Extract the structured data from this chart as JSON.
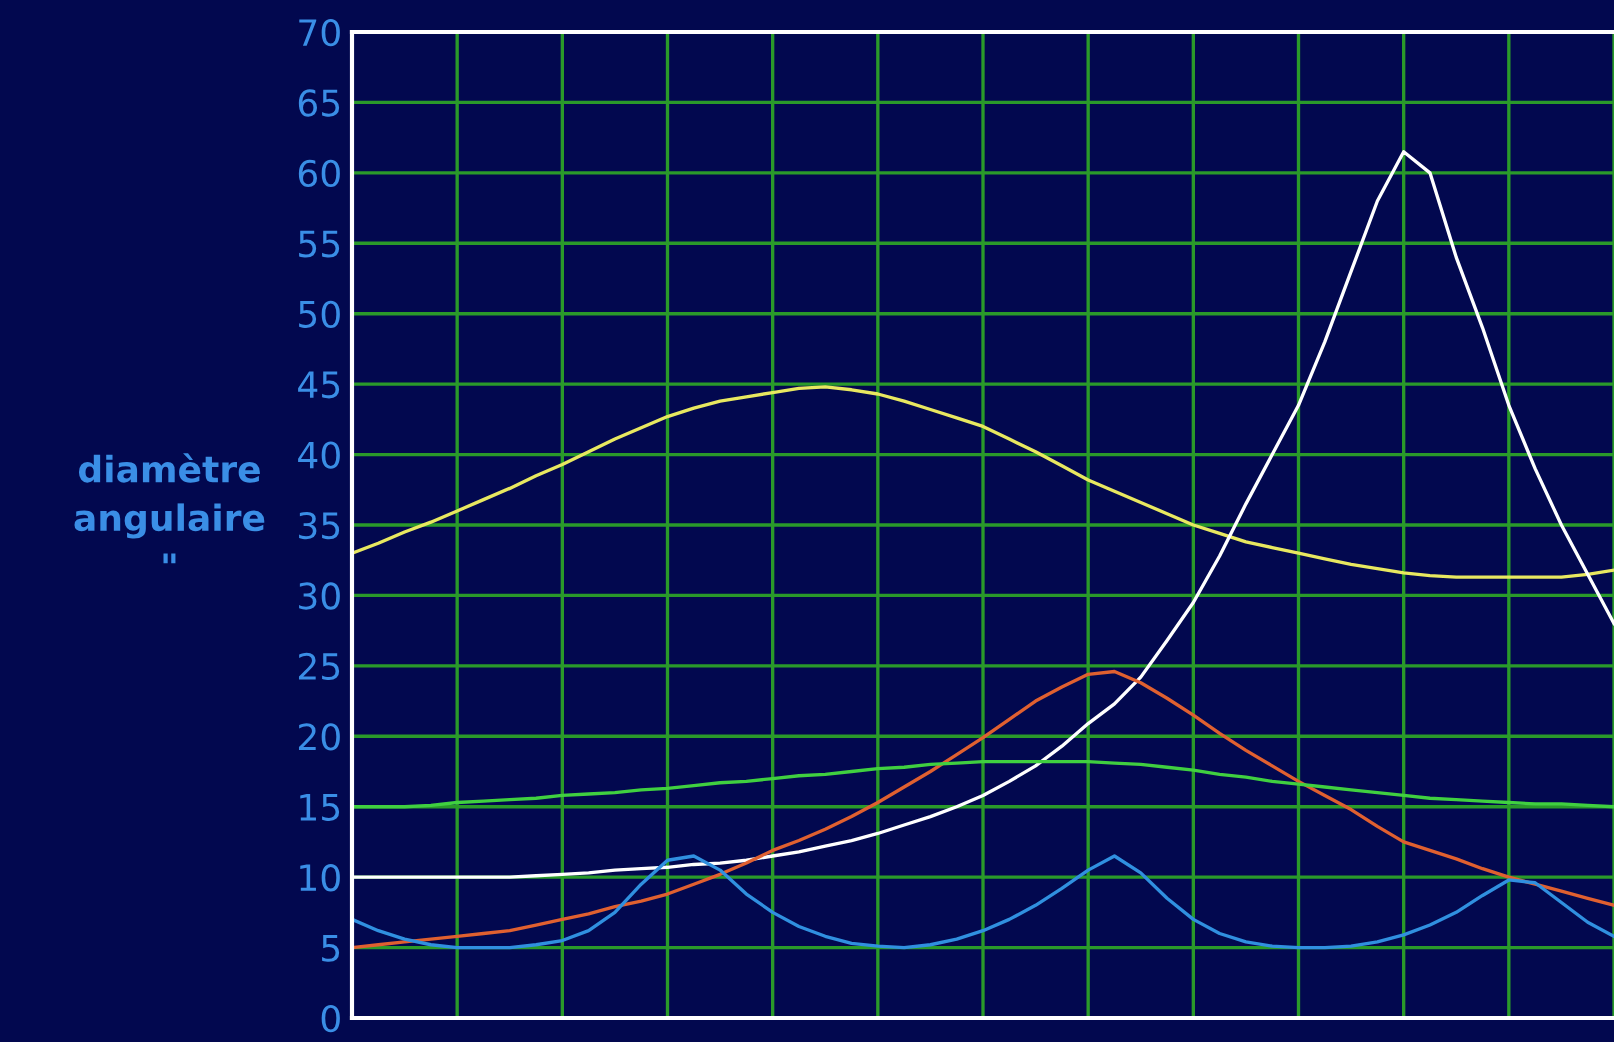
{
  "chart_data": {
    "type": "line",
    "ylabel": "diamètre\nangulaire\n\"",
    "categories": [
      null,
      null,
      null,
      null,
      null,
      null,
      null,
      null,
      null,
      null,
      null,
      null,
      null,
      null,
      null,
      null,
      null,
      null,
      null,
      null,
      null,
      null,
      null,
      null,
      null,
      null,
      null,
      null,
      null,
      null,
      null,
      null,
      null,
      null,
      null,
      null,
      null,
      null,
      null,
      null,
      null,
      null,
      null,
      null,
      null,
      null,
      null,
      null,
      null
    ],
    "series": [
      {
        "color": "#e8e860",
        "values": [
          33,
          33.7,
          34.5,
          35.2,
          36,
          36.8,
          37.6,
          38.5,
          39.3,
          40.2,
          41.1,
          41.9,
          42.7,
          43.3,
          43.8,
          44.1,
          44.4,
          44.7,
          44.8,
          44.6,
          44.3,
          43.8,
          43.2,
          42.6,
          42,
          41.1,
          40.2,
          39.2,
          38.2,
          37.4,
          36.6,
          35.8,
          35,
          34.4,
          33.8,
          33.4,
          33,
          32.6,
          32.2,
          31.9,
          31.6,
          31.4,
          31.3,
          31.3,
          31.3,
          31.3,
          31.3,
          31.5,
          31.8
        ]
      },
      {
        "color": "#ffffff",
        "values": [
          10,
          10,
          10,
          10,
          10,
          10,
          10,
          10.1,
          10.2,
          10.3,
          10.5,
          10.6,
          10.7,
          10.9,
          11,
          11.2,
          11.5,
          11.8,
          12.2,
          12.6,
          13.1,
          13.7,
          14.3,
          15,
          15.8,
          16.8,
          17.9,
          19.3,
          20.9,
          22.3,
          24.2,
          26.8,
          29.5,
          32.8,
          36.5,
          40,
          43.5,
          48,
          53,
          58,
          61.5,
          60,
          54,
          49,
          43.5,
          39,
          35,
          31.5,
          28
        ]
      },
      {
        "color": "#e06030",
        "values": [
          5,
          5.2,
          5.4,
          5.6,
          5.8,
          6,
          6.2,
          6.6,
          7,
          7.4,
          7.9,
          8.3,
          8.8,
          9.5,
          10.2,
          11,
          11.9,
          12.6,
          13.4,
          14.3,
          15.3,
          16.4,
          17.5,
          18.7,
          19.9,
          21.2,
          22.5,
          23.5,
          24.4,
          24.6,
          23.8,
          22.7,
          21.5,
          20.2,
          19,
          17.9,
          16.8,
          15.8,
          14.8,
          13.6,
          12.5,
          11.9,
          11.3,
          10.6,
          10,
          9.5,
          9,
          8.5,
          8
        ]
      },
      {
        "color": "#40d040",
        "values": [
          15,
          15,
          15,
          15.1,
          15.3,
          15.4,
          15.5,
          15.6,
          15.8,
          15.9,
          16,
          16.2,
          16.3,
          16.5,
          16.7,
          16.8,
          17,
          17.2,
          17.3,
          17.5,
          17.7,
          17.8,
          18,
          18.1,
          18.2,
          18.2,
          18.2,
          18.2,
          18.2,
          18.1,
          18,
          17.8,
          17.6,
          17.3,
          17.1,
          16.8,
          16.6,
          16.4,
          16.2,
          16,
          15.8,
          15.6,
          15.5,
          15.4,
          15.3,
          15.2,
          15.2,
          15.1,
          15
        ]
      },
      {
        "color": "#3090e0",
        "values": [
          7,
          6.2,
          5.6,
          5.2,
          5,
          5,
          5,
          5.2,
          5.5,
          6.2,
          7.5,
          9.5,
          11.2,
          11.5,
          10.5,
          8.8,
          7.5,
          6.5,
          5.8,
          5.3,
          5.1,
          5,
          5.2,
          5.6,
          6.2,
          7,
          8,
          9.2,
          10.5,
          11.5,
          10.3,
          8.5,
          7,
          6,
          5.4,
          5.1,
          5,
          5,
          5.1,
          5.4,
          5.9,
          6.6,
          7.5,
          8.7,
          9.8,
          9.6,
          8.2,
          6.8,
          5.8
        ]
      }
    ],
    "ylim": [
      0,
      70
    ],
    "yticks": [
      0,
      5,
      10,
      15,
      20,
      25,
      30,
      35,
      40,
      45,
      50,
      55,
      60,
      65,
      70
    ],
    "grid": true,
    "tick_labels": "y",
    "marker": "none",
    "line_style": "solid"
  }
}
